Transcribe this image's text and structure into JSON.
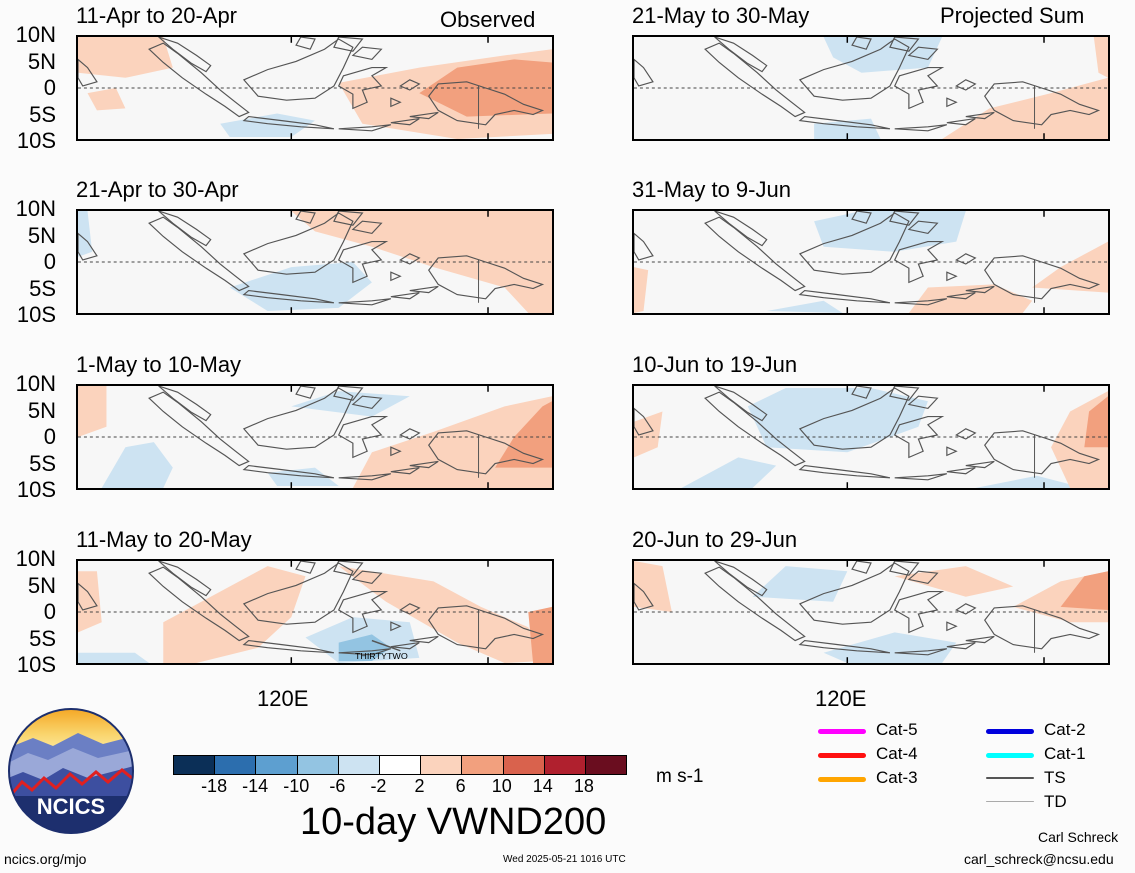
{
  "left_tag": "Observed",
  "right_tag": "Projected Sum",
  "lat_labels": [
    "10N",
    "5N",
    "0",
    "5S",
    "10S"
  ],
  "lon_label": "120E",
  "panels": [
    {
      "title": "11-Apr to 20-Apr"
    },
    {
      "title": "21-Apr to 30-Apr"
    },
    {
      "title": "1-May to 10-May"
    },
    {
      "title": "11-May to 20-May"
    },
    {
      "title": "21-May to 30-May"
    },
    {
      "title": "31-May to 9-Jun"
    },
    {
      "title": "10-Jun to 19-Jun"
    },
    {
      "title": "20-Jun to 29-Jun"
    }
  ],
  "storm_label": "THIRTYTWO",
  "colorbar": {
    "ticks": [
      "-18",
      "-14",
      "-10",
      "-6",
      "-2",
      "2",
      "6",
      "10",
      "14",
      "18"
    ],
    "colors": [
      "#0b2f57",
      "#2c6eae",
      "#5d9fd0",
      "#93c4e2",
      "#cde3f2",
      "#ffffff",
      "#fbd3bd",
      "#f2a07e",
      "#d9624d",
      "#b0202e",
      "#6a0d1f"
    ],
    "units": "m s-1",
    "title": "10-day VWND200"
  },
  "legend": {
    "items": [
      {
        "label": "Cat-5",
        "color": "#ff00ff"
      },
      {
        "label": "Cat-4",
        "color": "#ff1010"
      },
      {
        "label": "Cat-3",
        "color": "#ffa500"
      },
      {
        "label": "Cat-2",
        "color": "#0000dd"
      },
      {
        "label": "Cat-1",
        "color": "#00ffff"
      },
      {
        "label": "TS",
        "color": "#555555"
      },
      {
        "label": "TD",
        "color": "#aaaaaa"
      }
    ]
  },
  "logo": {
    "text": "NCICS"
  },
  "footer": {
    "site": "ncics.org/mjo",
    "timestamp": "Wed 2025-05-21 1016 UTC",
    "author": "Carl Schreck",
    "email": "carl_schreck@ncsu.edu"
  }
}
